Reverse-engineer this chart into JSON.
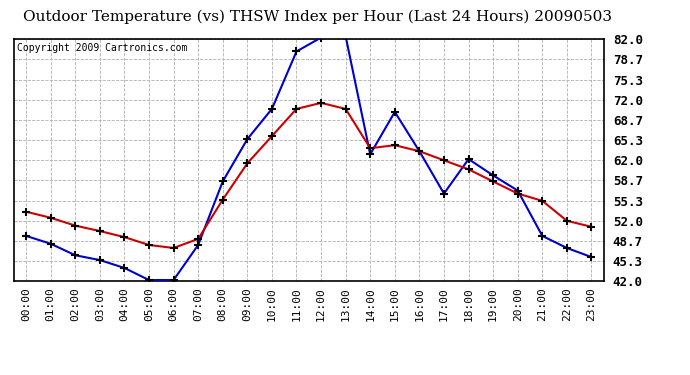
{
  "title": "Outdoor Temperature (vs) THSW Index per Hour (Last 24 Hours) 20090503",
  "copyright": "Copyright 2009 Cartronics.com",
  "hours": [
    0,
    1,
    2,
    3,
    4,
    5,
    6,
    7,
    8,
    9,
    10,
    11,
    12,
    13,
    14,
    15,
    16,
    17,
    18,
    19,
    20,
    21,
    22,
    23
  ],
  "temp_red": [
    53.5,
    52.5,
    51.2,
    50.3,
    49.3,
    48.0,
    47.5,
    49.0,
    55.5,
    61.5,
    66.0,
    70.5,
    71.5,
    70.5,
    64.0,
    64.5,
    63.5,
    62.0,
    60.5,
    58.5,
    56.5,
    55.3,
    52.0,
    51.0
  ],
  "thsw_blue": [
    49.5,
    48.2,
    46.3,
    45.5,
    44.2,
    42.2,
    42.2,
    48.0,
    58.5,
    65.5,
    70.5,
    80.0,
    82.3,
    82.5,
    63.0,
    70.0,
    63.5,
    56.5,
    62.2,
    59.5,
    57.0,
    49.5,
    47.5,
    46.0
  ],
  "ylim": [
    42.0,
    82.0
  ],
  "yticks": [
    42.0,
    45.3,
    48.7,
    52.0,
    55.3,
    58.7,
    62.0,
    65.3,
    68.7,
    72.0,
    75.3,
    78.7,
    82.0
  ],
  "bg_color": "#ffffff",
  "grid_color": "#b0b0b0",
  "red_color": "#cc0000",
  "blue_color": "#0000cc",
  "title_fontsize": 11,
  "copyright_fontsize": 7,
  "tick_label_fontsize": 8,
  "ytick_fontsize": 9
}
